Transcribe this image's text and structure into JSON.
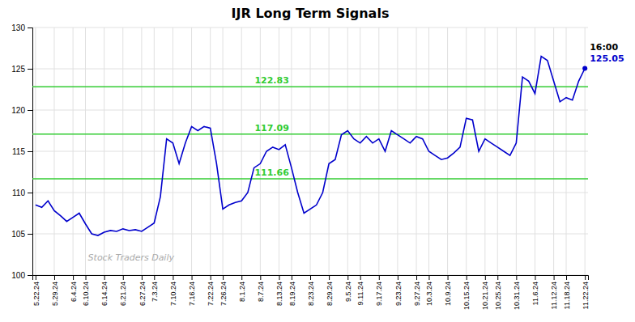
{
  "chart_data": {
    "type": "line",
    "title": "IJR Long Term Signals",
    "categories": [
      "5.22.24",
      null,
      null,
      "5.29.24",
      null,
      null,
      "6.4.24",
      null,
      "6.10.24",
      null,
      null,
      "6.14.24",
      null,
      null,
      "6.21.24",
      null,
      null,
      "6.27.24",
      null,
      "7.3.24",
      null,
      null,
      "7.10.24",
      null,
      null,
      "7.16.24",
      null,
      null,
      "7.22.24",
      null,
      "7.26.24",
      null,
      null,
      "8.1.24",
      null,
      null,
      "8.7.24",
      null,
      null,
      "8.13.24",
      null,
      "8.19.24",
      null,
      null,
      "8.23.24",
      null,
      null,
      "8.29.24",
      null,
      null,
      "9.5.24",
      null,
      "9.11.24",
      null,
      null,
      "9.17.24",
      null,
      null,
      "9.23.24",
      null,
      null,
      "9.27.24",
      null,
      "10.3.24",
      null,
      null,
      "10.9.24",
      null,
      null,
      "10.15.24",
      null,
      null,
      "10.21.24",
      null,
      "10.25.24",
      null,
      null,
      "10.31.24",
      null,
      null,
      "11.6.24",
      null,
      null,
      "11.12.24",
      null,
      "11.18.24",
      null,
      null,
      "11.22.24"
    ],
    "values": [
      108.5,
      108.2,
      109.0,
      107.8,
      107.2,
      106.5,
      107.0,
      107.5,
      106.2,
      105.0,
      104.8,
      105.2,
      105.4,
      105.3,
      105.6,
      105.4,
      105.5,
      105.3,
      105.8,
      106.3,
      109.5,
      116.5,
      116.0,
      113.5,
      116.0,
      118.0,
      117.5,
      118.0,
      117.8,
      113.5,
      108.0,
      108.5,
      108.8,
      109.0,
      110.0,
      113.0,
      113.5,
      115.0,
      115.5,
      115.2,
      115.8,
      113.0,
      110.0,
      107.5,
      108.0,
      108.5,
      110.0,
      113.5,
      114.0,
      117.0,
      117.5,
      116.5,
      116.0,
      116.8,
      116.0,
      116.5,
      115.0,
      117.5,
      117.0,
      116.5,
      116.0,
      116.8,
      116.5,
      115.0,
      114.5,
      114.0,
      114.2,
      114.8,
      115.5,
      119.0,
      118.8,
      115.0,
      116.5,
      116.0,
      115.5,
      115.0,
      114.5,
      116.0,
      124.0,
      123.5,
      122.0,
      126.5,
      126.0,
      123.5,
      121.0,
      121.5,
      121.2,
      123.5,
      125.05
    ],
    "color": "#0000cc",
    "ylim": [
      100,
      130
    ],
    "yticks": [
      100,
      105,
      110,
      115,
      120,
      125,
      130
    ],
    "grid": true,
    "hlines": [
      {
        "value": 122.83,
        "label": "122.83",
        "color": "#33cc33"
      },
      {
        "value": 117.09,
        "label": "117.09",
        "color": "#33cc33"
      },
      {
        "value": 111.66,
        "label": "111.66",
        "color": "#33cc33"
      }
    ],
    "annotations": [
      {
        "text": "16:00"
      },
      {
        "text": "125.05",
        "value": 125.05
      }
    ],
    "watermark": "Stock Traders Daily"
  }
}
